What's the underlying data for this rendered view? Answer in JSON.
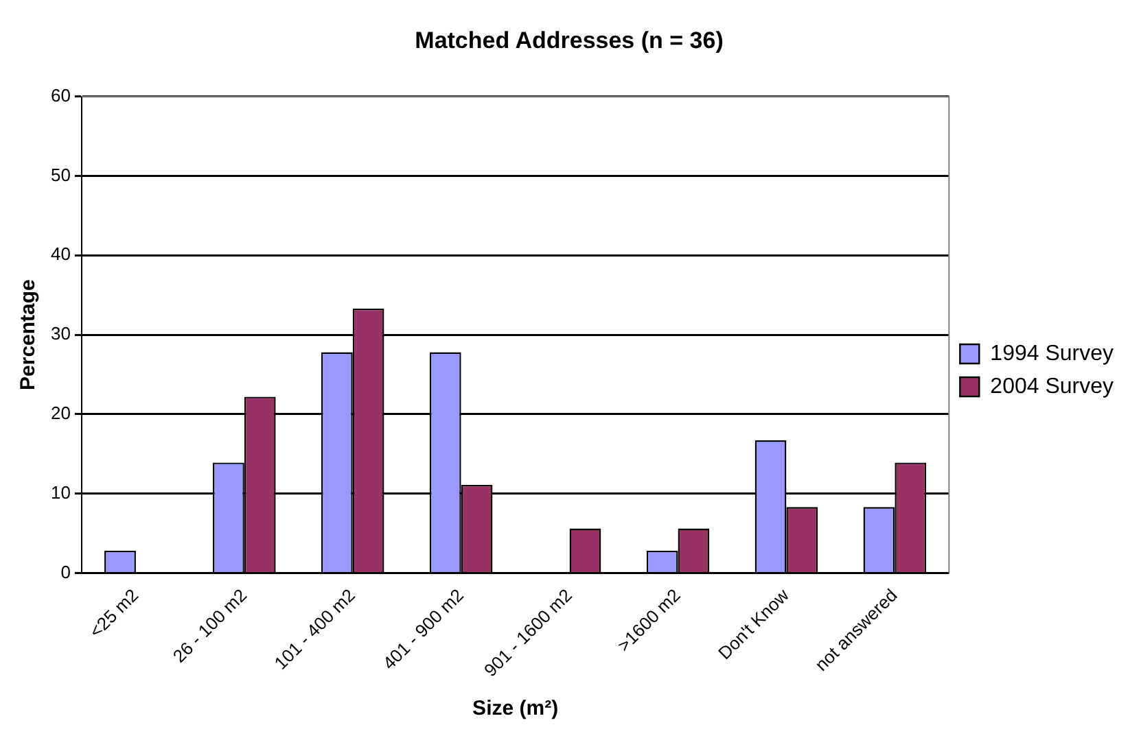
{
  "chart_data": {
    "type": "bar",
    "title": "Matched Addresses (n = 36)",
    "xlabel": "Size (m²)",
    "ylabel": "Percentage",
    "categories": [
      "<25 m2",
      "26 - 100 m2",
      "101 - 400 m2",
      "401 - 900 m2",
      "901 - 1600 m2",
      ">1600 m2",
      "Don't Know",
      "not answered"
    ],
    "series": [
      {
        "name": "1994 Survey",
        "color": "#9999ff",
        "values": [
          2.8,
          13.9,
          27.8,
          27.8,
          0,
          2.8,
          16.7,
          8.3
        ]
      },
      {
        "name": "2004 Survey",
        "color": "#993366",
        "values": [
          0,
          22.2,
          33.3,
          11.1,
          5.6,
          5.6,
          8.3,
          13.9
        ]
      }
    ],
    "ylim": [
      0,
      60
    ],
    "yticks": [
      0,
      10,
      20,
      30,
      40,
      50,
      60
    ],
    "grid": "y",
    "legend": "right"
  }
}
